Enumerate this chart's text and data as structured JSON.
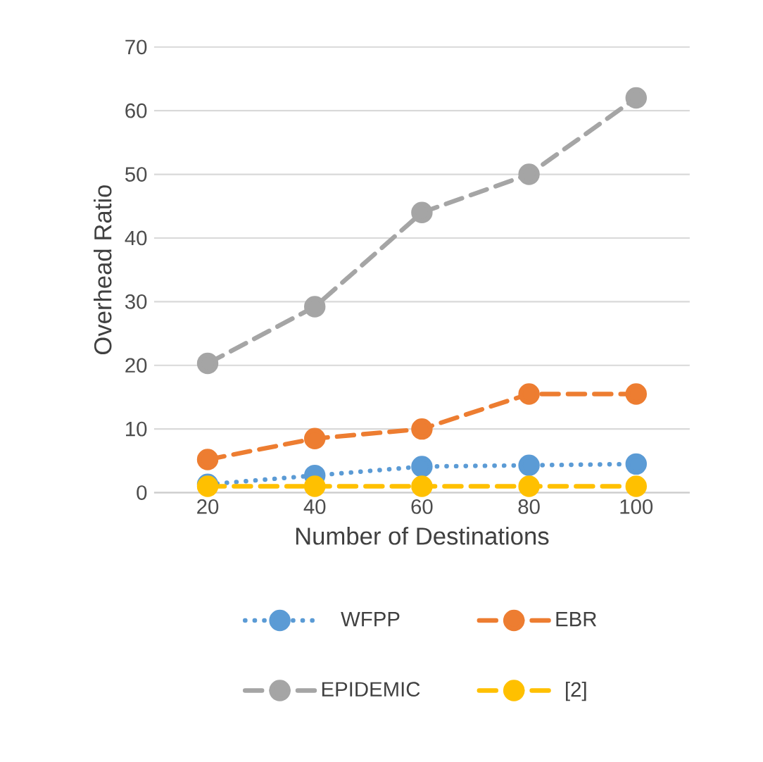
{
  "chart_data": {
    "type": "line",
    "xlabel": "Number of Destinations",
    "ylabel": "Overhead Ratio",
    "categories": [
      "20",
      "40",
      "60",
      "80",
      "100"
    ],
    "ylim": [
      0,
      70
    ],
    "yticks": [
      0,
      10,
      20,
      30,
      40,
      50,
      60,
      70
    ],
    "grid": "y",
    "legend": "bottom",
    "marker": "circle",
    "series": [
      {
        "name": "WFPP",
        "color": "#5b9bd5",
        "line_style": "dotted",
        "values": [
          1.3,
          2.7,
          4.1,
          4.3,
          4.5
        ]
      },
      {
        "name": "EBR",
        "color": "#ed7d31",
        "line_style": "dashed",
        "values": [
          5.2,
          8.5,
          10,
          15.5,
          15.5
        ]
      },
      {
        "name": "EPIDEMIC",
        "color": "#a5a5a5",
        "line_style": "dashed",
        "values": [
          20.3,
          29.2,
          44,
          50,
          62
        ]
      },
      {
        "name": "[2]",
        "color": "#ffc000",
        "line_style": "dashed",
        "values": [
          1,
          1,
          1,
          1,
          1
        ]
      }
    ]
  }
}
